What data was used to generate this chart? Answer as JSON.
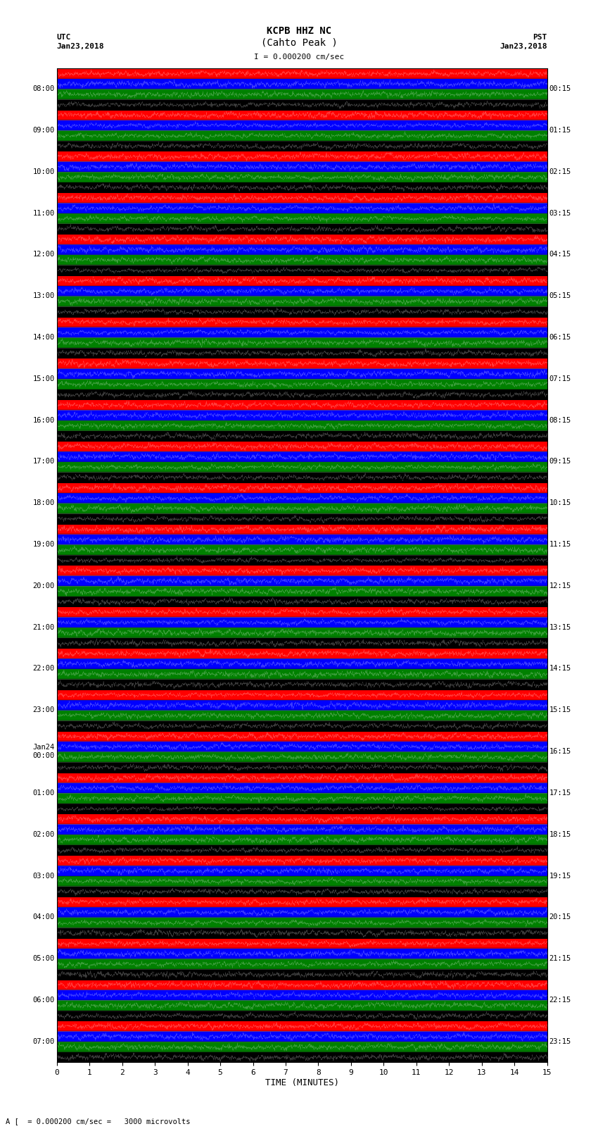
{
  "title_line1": "KCPB HHZ NC",
  "title_line2": "(Cahto Peak )",
  "scale_text": "I = 0.000200 cm/sec",
  "footnote": "A [  = 0.000200 cm/sec =   3000 microvolts",
  "xlabel": "TIME (MINUTES)",
  "left_header": "UTC\nJan23,2018",
  "right_header": "PST\nJan23,2018",
  "utc_labels": [
    "08:00",
    "09:00",
    "10:00",
    "11:00",
    "12:00",
    "13:00",
    "14:00",
    "15:00",
    "16:00",
    "17:00",
    "18:00",
    "19:00",
    "20:00",
    "21:00",
    "22:00",
    "23:00",
    "Jan24\n00:00",
    "01:00",
    "02:00",
    "03:00",
    "04:00",
    "05:00",
    "06:00",
    "07:00"
  ],
  "pst_labels": [
    "00:15",
    "01:15",
    "02:15",
    "03:15",
    "04:15",
    "05:15",
    "06:15",
    "07:15",
    "08:15",
    "09:15",
    "10:15",
    "11:15",
    "12:15",
    "13:15",
    "14:15",
    "15:15",
    "16:15",
    "17:15",
    "18:15",
    "19:15",
    "20:15",
    "21:15",
    "22:15",
    "23:15"
  ],
  "n_rows": 24,
  "minutes_per_row": 15,
  "fig_width": 8.5,
  "fig_height": 16.13,
  "bg_color": "white",
  "sub_trace_colors": [
    "red",
    "blue",
    "green",
    "black"
  ],
  "seed": 42
}
